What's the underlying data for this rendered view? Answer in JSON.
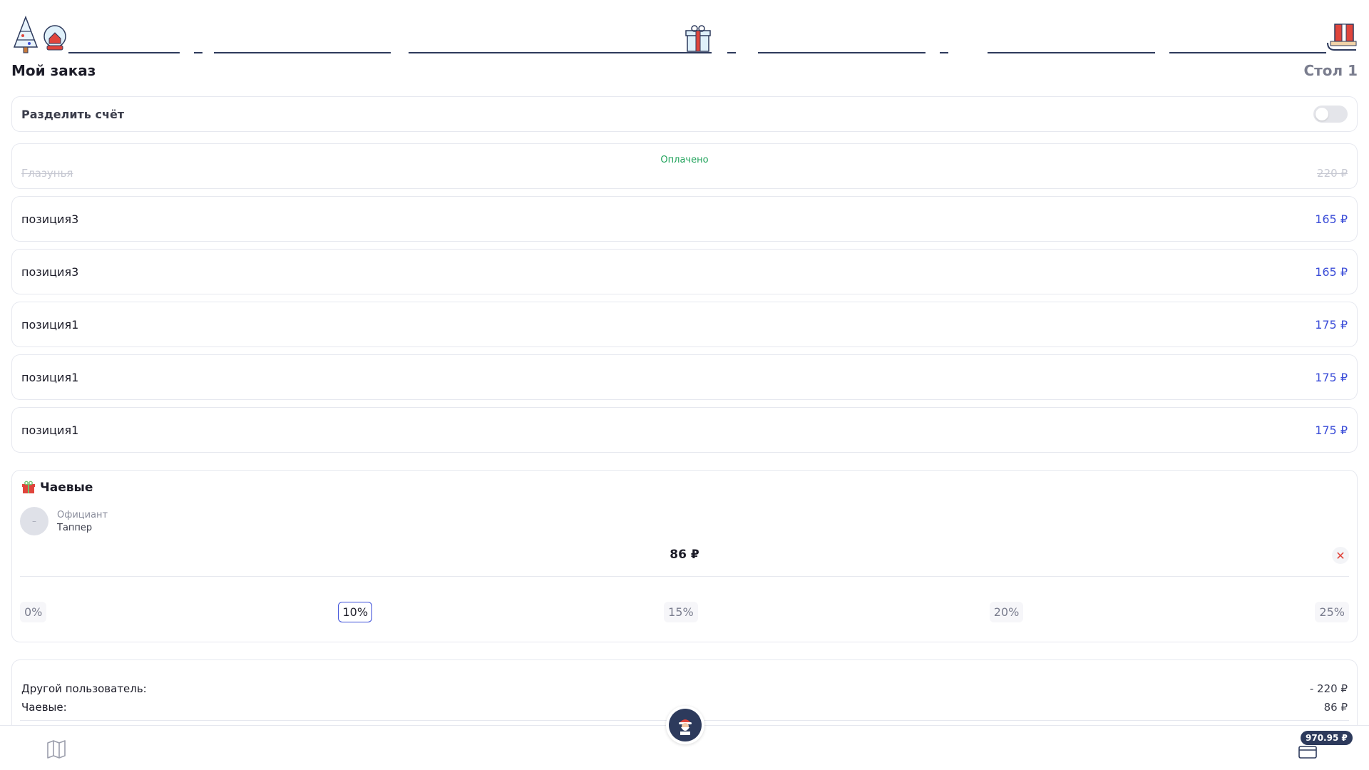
{
  "header": {
    "title": "Мой заказ",
    "table": "Стол 1"
  },
  "split_bill": {
    "label": "Разделить счёт",
    "enabled": false
  },
  "paid_item": {
    "status": "Оплачено",
    "name": "Глазунья",
    "price": "220 ₽"
  },
  "items": [
    {
      "name": "позиция3",
      "price": "165 ₽"
    },
    {
      "name": "позиция3",
      "price": "165 ₽"
    },
    {
      "name": "позиция1",
      "price": "175 ₽"
    },
    {
      "name": "позиция1",
      "price": "175 ₽"
    },
    {
      "name": "позиция1",
      "price": "175 ₽"
    }
  ],
  "tips": {
    "title": "Чаевые",
    "waiter_role": "Официант",
    "waiter_name": "Таппер",
    "amount": "86 ₽",
    "clear_symbol": "✕",
    "percentages": [
      "0%",
      "10%",
      "15%",
      "20%",
      "25%"
    ],
    "selected": "10%"
  },
  "summary": {
    "other_user_label": "Другой пользователь:",
    "other_user_value": "- 220 ₽",
    "tips_label": "Чаевые:",
    "tips_value": "86 ₽"
  },
  "bottom_bar": {
    "total": "970.95 ₽",
    "icons": [
      "menu-book-icon",
      "santa-waiter-icon",
      "credit-card-icon"
    ]
  },
  "colors": {
    "accent": "#3b4dd8",
    "paid": "#1fa25a",
    "dark": "#2d3a5c",
    "clear": "#e0453c"
  }
}
